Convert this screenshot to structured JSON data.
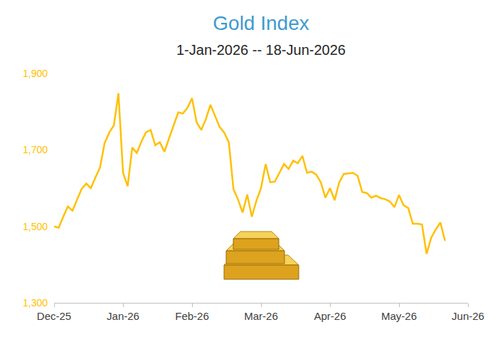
{
  "chart_data": {
    "type": "line",
    "title": "Gold Index",
    "subtitle": "1-Jan-2026 -- 18-Jun-2026",
    "color": "#FFC000",
    "grid": false,
    "categories": [
      "Dec-25",
      null,
      null,
      null,
      null,
      null,
      null,
      null,
      null,
      null,
      null,
      null,
      null,
      null,
      null,
      "Jan-26",
      null,
      null,
      null,
      null,
      null,
      null,
      null,
      null,
      null,
      null,
      null,
      null,
      null,
      null,
      "Feb-26",
      null,
      null,
      null,
      null,
      null,
      null,
      null,
      null,
      null,
      null,
      null,
      null,
      null,
      null,
      "Mar-26",
      null,
      null,
      null,
      null,
      null,
      null,
      null,
      null,
      null,
      null,
      null,
      null,
      null,
      null,
      "Apr-26",
      null,
      null,
      null,
      null,
      null,
      null,
      null,
      null,
      null,
      null,
      null,
      null,
      null,
      null,
      "May-26",
      null,
      null,
      null,
      null,
      null,
      null,
      null,
      null,
      null,
      null,
      null,
      null,
      null,
      null,
      "Jun-26"
    ],
    "values": [
      1500,
      1496,
      1525,
      1552,
      1541,
      1570,
      1598,
      1612,
      1600,
      1628,
      1654,
      1718,
      1745,
      1764,
      1848,
      1640,
      1605,
      1706,
      1692,
      1722,
      1746,
      1752,
      1712,
      1720,
      1695,
      1730,
      1766,
      1798,
      1795,
      1810,
      1835,
      1772,
      1752,
      1780,
      1818,
      1790,
      1760,
      1745,
      1720,
      1598,
      1570,
      1536,
      1583,
      1525,
      1567,
      1600,
      1663,
      1615,
      1617,
      1640,
      1663,
      1650,
      1672,
      1665,
      1684,
      1640,
      1643,
      1635,
      1615,
      1575,
      1600,
      1568,
      1615,
      1637,
      1638,
      1640,
      1632,
      1590,
      1587,
      1575,
      1580,
      1574,
      1571,
      1565,
      1550,
      1582,
      1555,
      1548,
      1507,
      1507,
      1505,
      1428,
      1470,
      1492,
      1510,
      1462,
      null,
      null,
      null,
      null,
      null
    ],
    "ylim": [
      1300,
      1900
    ],
    "yticks": [
      {
        "value": 1300,
        "label": "1,300"
      },
      {
        "value": 1500,
        "label": "1,500"
      },
      {
        "value": 1700,
        "label": "1,700"
      },
      {
        "value": 1900,
        "label": "1,900"
      }
    ]
  }
}
